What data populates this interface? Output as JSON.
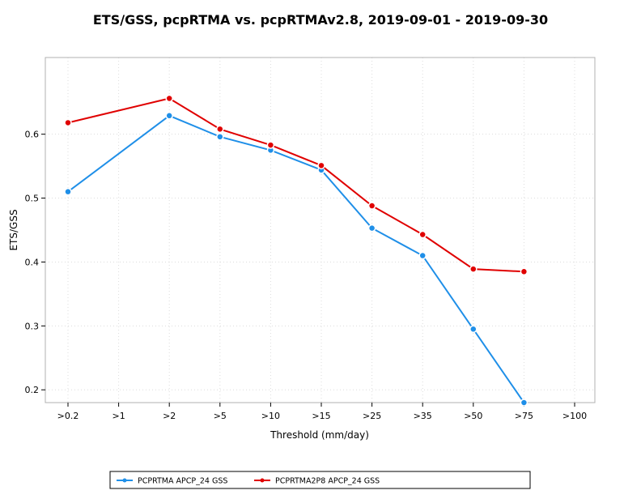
{
  "chart_data": {
    "type": "line",
    "title": "ETS/GSS, pcpRTMA vs. pcpRTMAv2.8, 2019-09-01 - 2019-09-30",
    "xlabel": "Threshold (mm/day)",
    "ylabel": "ETS/GSS",
    "categories": [
      ">0.2",
      ">1",
      ">2",
      ">5",
      ">10",
      ">15",
      ">25",
      ">35",
      ">50",
      ">75",
      ">100"
    ],
    "yticks": [
      "0.2",
      "0.3",
      "0.4",
      "0.5",
      "0.6"
    ],
    "ylim": [
      0.18,
      0.72
    ],
    "grid": true,
    "legend_position": "bottom",
    "series": [
      {
        "name": "PCPRTMA APCP_24 GSS",
        "color": "#1f8fe8",
        "values": [
          0.51,
          null,
          0.629,
          0.596,
          0.575,
          0.544,
          0.453,
          0.41,
          0.295,
          0.18,
          null
        ]
      },
      {
        "name": "PCPRTMA2P8 APCP_24 GSS",
        "color": "#e00000",
        "values": [
          0.618,
          null,
          0.656,
          0.608,
          0.583,
          0.551,
          0.488,
          0.443,
          0.389,
          0.385,
          null
        ]
      }
    ]
  }
}
